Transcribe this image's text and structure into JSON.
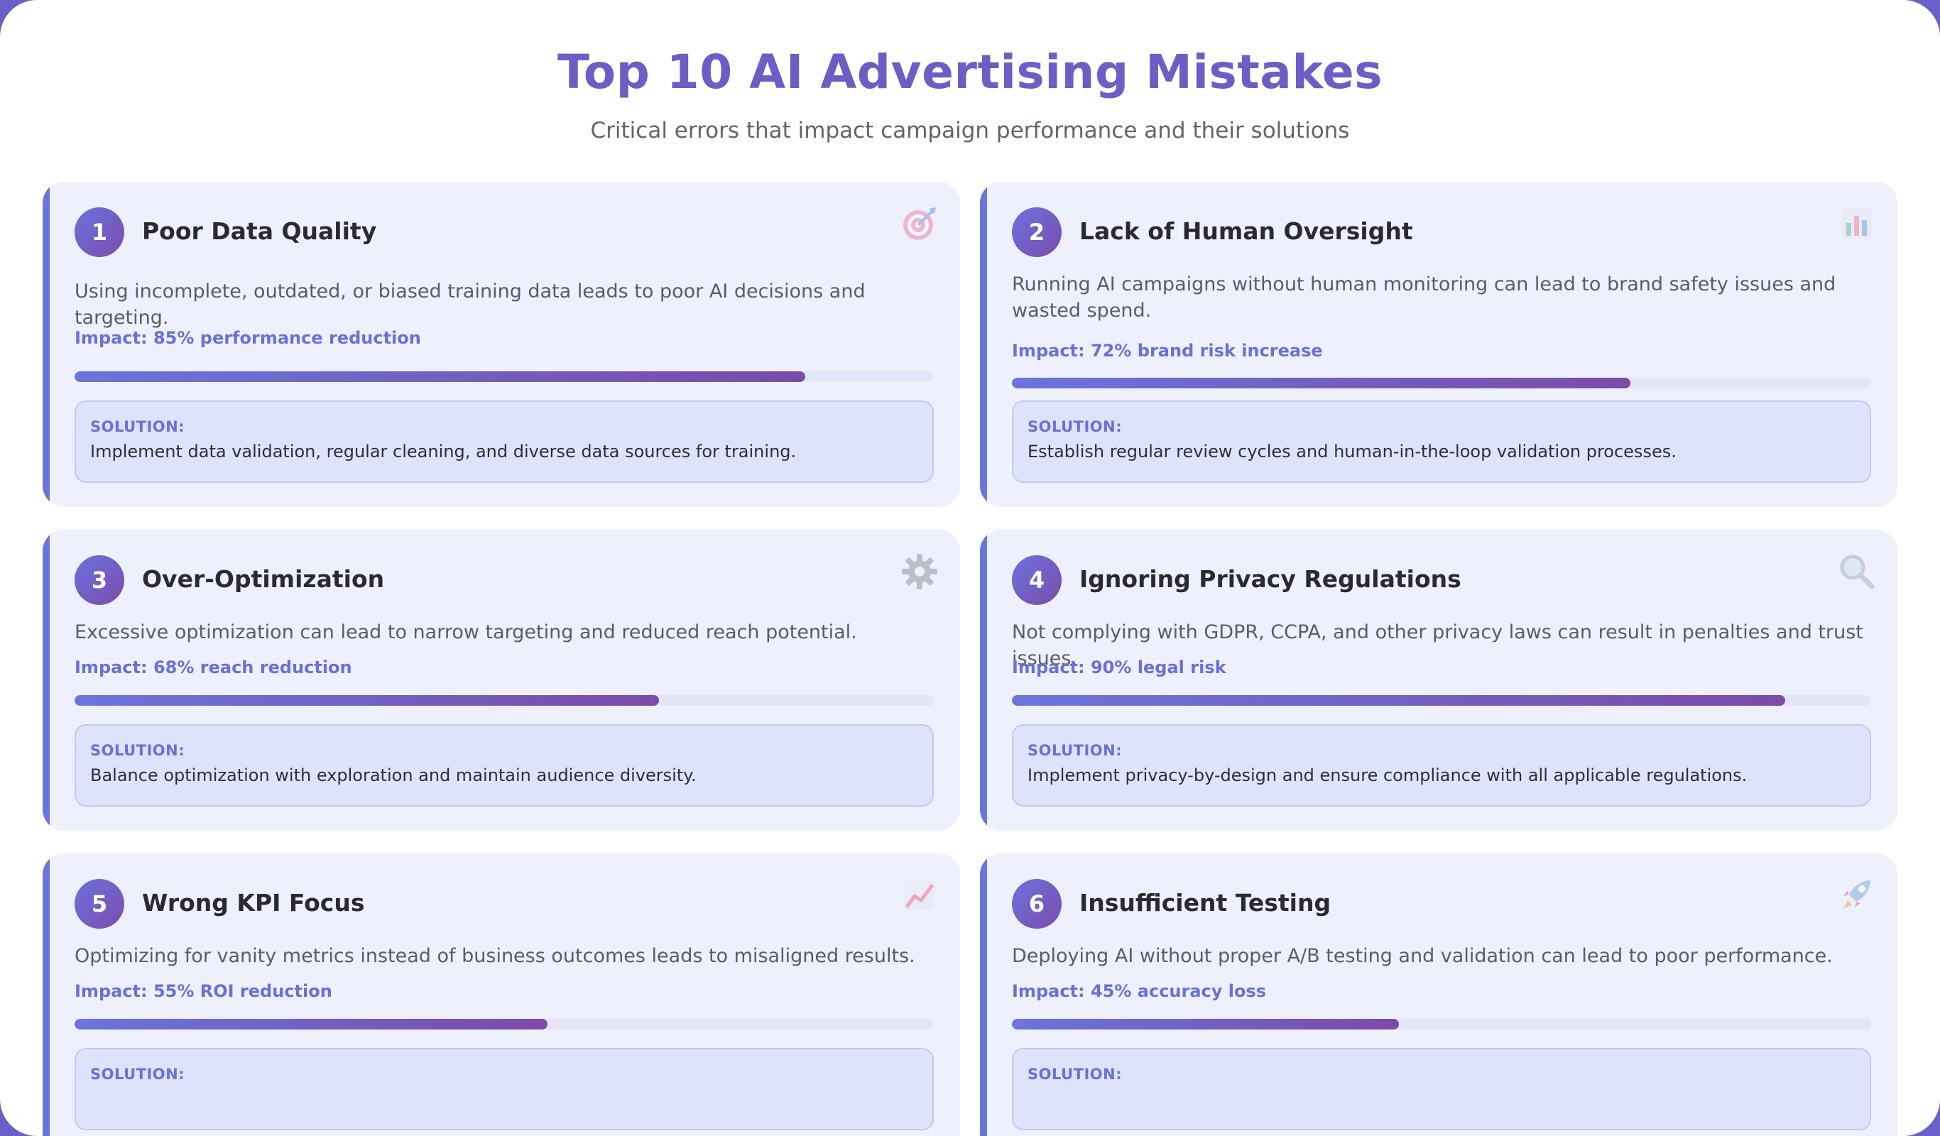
{
  "header": {
    "title": "Top 10 AI Advertising Mistakes",
    "subtitle": "Critical errors that impact campaign performance and their solutions"
  },
  "mistakes": [
    {
      "number": "1",
      "title": "Poor Data Quality",
      "icon": "target-icon",
      "description": "Using incomplete, outdated, or biased training data leads to poor AI decisions and targeting.",
      "impact": "Impact: 85% performance reduction",
      "impact_percent": 85,
      "solution_label": "SOLUTION:",
      "solution": "Implement data validation, regular cleaning, and diverse data sources for training."
    },
    {
      "number": "2",
      "title": "Lack of Human Oversight",
      "icon": "bar-chart-icon",
      "description": "Running AI campaigns without human monitoring can lead to brand safety issues and wasted spend.",
      "impact": "Impact: 72% brand risk increase",
      "impact_percent": 72,
      "solution_label": "SOLUTION:",
      "solution": "Establish regular review cycles and human-in-the-loop validation processes."
    },
    {
      "number": "3",
      "title": "Over-Optimization",
      "icon": "gear-icon",
      "description": "Excessive optimization can lead to narrow targeting and reduced reach potential.",
      "impact": "Impact: 68% reach reduction",
      "impact_percent": 68,
      "solution_label": "SOLUTION:",
      "solution": "Balance optimization with exploration and maintain audience diversity."
    },
    {
      "number": "4",
      "title": "Ignoring Privacy Regulations",
      "icon": "magnifier-icon",
      "description": "Not complying with GDPR, CCPA, and other privacy laws can result in penalties and trust issues.",
      "impact": "Impact: 90% legal risk",
      "impact_percent": 90,
      "solution_label": "SOLUTION:",
      "solution": "Implement privacy-by-design and ensure compliance with all applicable regulations."
    },
    {
      "number": "5",
      "title": "Wrong KPI Focus",
      "icon": "trend-chart-icon",
      "description": "Optimizing for vanity metrics instead of business outcomes leads to misaligned results.",
      "impact": "Impact: 55% ROI reduction",
      "impact_percent": 55,
      "solution_label": "SOLUTION:",
      "solution": ""
    },
    {
      "number": "6",
      "title": "Insufficient Testing",
      "icon": "rocket-icon",
      "description": "Deploying AI without proper A/B testing and validation can lead to poor performance.",
      "impact": "Impact: 45% accuracy loss",
      "impact_percent": 45,
      "solution_label": "SOLUTION:",
      "solution": ""
    }
  ],
  "colors": {
    "accent": "#6a75dc",
    "title": "#6f5cc4",
    "card_bg": "#eff0fd",
    "solution_bg": "#dfe2fb"
  }
}
